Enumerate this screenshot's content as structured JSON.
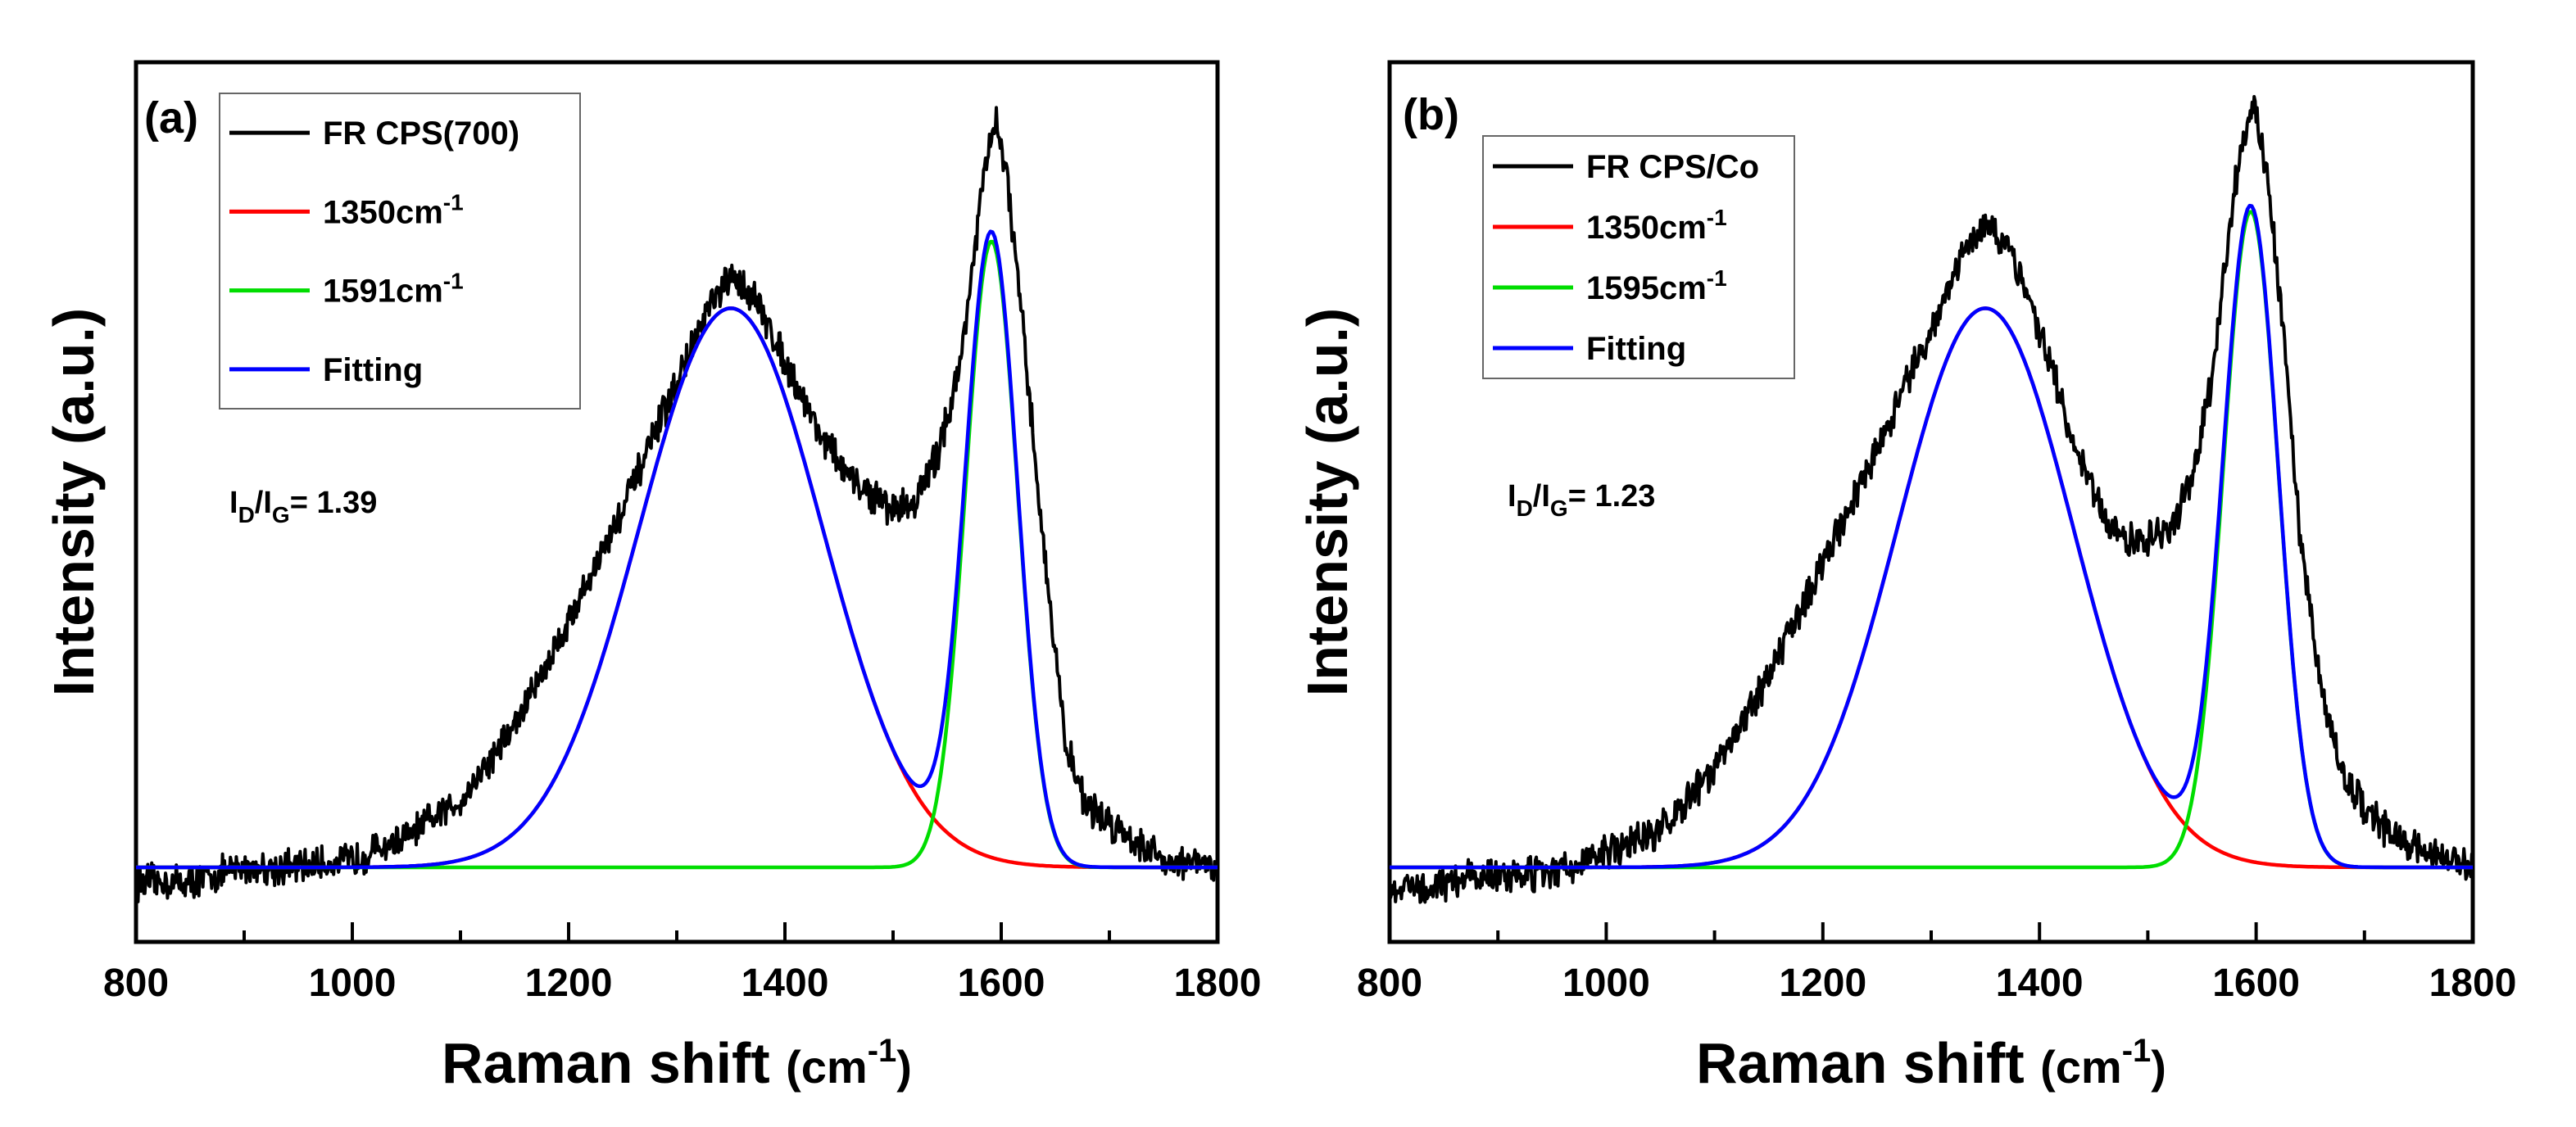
{
  "figure": {
    "panels_count": 2
  },
  "chart_data": [
    {
      "type": "line",
      "panel_label": "(a)",
      "xlabel_main": "Raman shift ",
      "xlabel_unit": "(cm",
      "xlabel_unit_sup": "-1",
      "xlabel_unit_close": ")",
      "ylabel": "Intensity (a.u.)",
      "xlim": [
        800,
        1800
      ],
      "ylim": [
        -0.1,
        1.08
      ],
      "xticks": [
        800,
        1000,
        1200,
        1400,
        1600,
        1800
      ],
      "xtick_labels": [
        "800",
        "1000",
        "1200",
        "1400",
        "1600",
        "1800"
      ],
      "ratio_annotation": {
        "prefix": "I",
        "sub1": "D",
        "mid": "/I",
        "sub2": "G",
        "suffix": "= 1.39"
      },
      "legend": [
        {
          "name": "FR CPS(700)",
          "sup": "",
          "color": "#000000"
        },
        {
          "name": "1350cm",
          "sup": "-1",
          "color": "#ff0000"
        },
        {
          "name": "1591cm",
          "sup": "-1",
          "color": "#00dd00"
        },
        {
          "name": "Fitting",
          "sup": "",
          "color": "#0000ff"
        }
      ],
      "series": [
        {
          "name": "FR CPS(700)",
          "color": "#000000",
          "kind": "data",
          "x": [
            800,
            850,
            900,
            950,
            1000,
            1050,
            1100,
            1150,
            1200,
            1250,
            1300,
            1330,
            1350,
            1370,
            1400,
            1430,
            1460,
            1480,
            1500,
            1520,
            1540,
            1560,
            1575,
            1585,
            1595,
            1605,
            1620,
            1640,
            1660,
            1680,
            1700,
            1720,
            1750,
            1800
          ],
          "y": [
            -0.02,
            -0.02,
            0.0,
            0.0,
            0.01,
            0.04,
            0.09,
            0.19,
            0.33,
            0.48,
            0.65,
            0.75,
            0.79,
            0.77,
            0.68,
            0.59,
            0.52,
            0.5,
            0.48,
            0.49,
            0.55,
            0.66,
            0.82,
            0.94,
            1.0,
            0.93,
            0.72,
            0.42,
            0.16,
            0.08,
            0.06,
            0.04,
            0.01,
            0.0
          ]
        },
        {
          "name": "1350cm-1",
          "color": "#ff0000",
          "kind": "fit",
          "peak": {
            "center": 1350,
            "height": 0.75,
            "width": 120,
            "shape": "gaussian"
          },
          "baseline": 0.0
        },
        {
          "name": "1591cm-1",
          "color": "#00dd00",
          "kind": "fit",
          "peak": {
            "center": 1591,
            "height": 0.84,
            "width": 34,
            "shape": "gaussian"
          },
          "baseline": 0.0
        },
        {
          "name": "Fitting",
          "color": "#0000ff",
          "kind": "sum",
          "baseline": 0.0
        }
      ]
    },
    {
      "type": "line",
      "panel_label": "(b)",
      "xlabel_main": "Raman shift ",
      "xlabel_unit": "(cm",
      "xlabel_unit_sup": "-1",
      "xlabel_unit_close": ")",
      "ylabel": "Intensity (a.u.)",
      "xlim": [
        800,
        1800
      ],
      "ylim": [
        -0.1,
        1.08
      ],
      "xticks": [
        800,
        1000,
        1200,
        1400,
        1600,
        1800
      ],
      "xtick_labels": [
        "800",
        "1000",
        "1200",
        "1400",
        "1600",
        "1800"
      ],
      "ratio_annotation": {
        "prefix": "I",
        "sub1": "D",
        "mid": "/I",
        "sub2": "G",
        "suffix": "= 1.23"
      },
      "legend": [
        {
          "name": "FR CPS/Co",
          "sup": "",
          "color": "#000000"
        },
        {
          "name": "1350cm",
          "sup": "-1",
          "color": "#ff0000"
        },
        {
          "name": "1595cm",
          "sup": "-1",
          "color": "#00dd00"
        },
        {
          "name": "Fitting",
          "sup": "",
          "color": "#0000ff"
        }
      ],
      "series": [
        {
          "name": "FR CPS/Co",
          "color": "#000000",
          "kind": "data",
          "x": [
            800,
            850,
            900,
            950,
            1000,
            1050,
            1100,
            1150,
            1200,
            1250,
            1300,
            1330,
            1350,
            1370,
            1400,
            1430,
            1460,
            1480,
            1500,
            1520,
            1540,
            1560,
            1575,
            1585,
            1598,
            1610,
            1625,
            1640,
            1660,
            1680,
            1700,
            1720,
            1750,
            1800
          ],
          "y": [
            -0.03,
            -0.02,
            -0.01,
            -0.01,
            0.02,
            0.05,
            0.13,
            0.26,
            0.41,
            0.56,
            0.72,
            0.83,
            0.86,
            0.83,
            0.72,
            0.58,
            0.47,
            0.44,
            0.44,
            0.45,
            0.52,
            0.66,
            0.85,
            0.96,
            1.02,
            0.93,
            0.72,
            0.45,
            0.24,
            0.12,
            0.08,
            0.05,
            0.02,
            0.0
          ]
        },
        {
          "name": "1350cm-1",
          "color": "#ff0000",
          "kind": "fit",
          "peak": {
            "center": 1350,
            "height": 0.75,
            "width": 115,
            "shape": "gaussian"
          },
          "baseline": 0.0
        },
        {
          "name": "1595cm-1",
          "color": "#00dd00",
          "kind": "fit",
          "peak": {
            "center": 1595,
            "height": 0.88,
            "width": 36,
            "shape": "gaussian"
          },
          "baseline": 0.0
        },
        {
          "name": "Fitting",
          "color": "#0000ff",
          "kind": "sum",
          "baseline": 0.0
        }
      ]
    }
  ]
}
